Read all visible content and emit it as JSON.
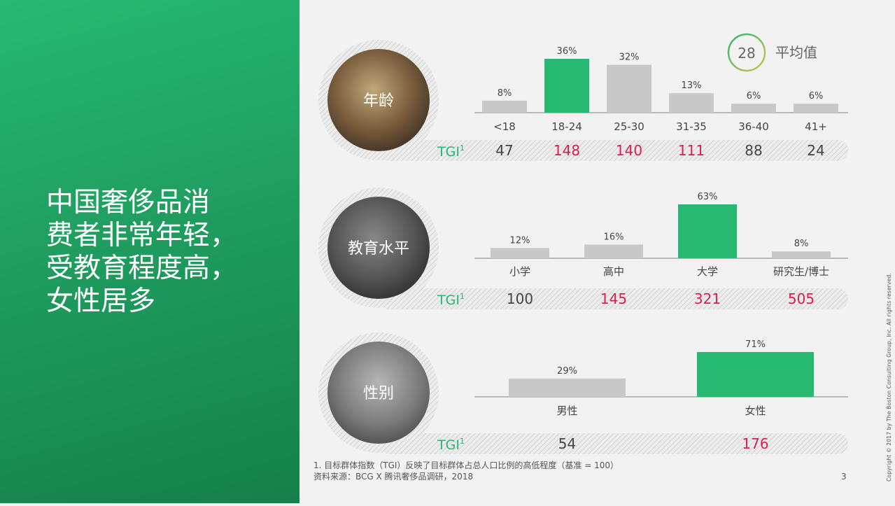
{
  "headline": [
    "中国奢侈品消",
    "费者非常年轻，",
    "受教育程度高，",
    "女性居多"
  ],
  "average": {
    "value": "28",
    "label": "平均值"
  },
  "tgi_label": "TGI",
  "tgi_sup": "1",
  "colors": {
    "highlight": "#27b872",
    "neutral": "#c8c8c8",
    "tgi_high": "#d81f4f",
    "tgi_low": "#444444",
    "green_panel": "#1f9e60"
  },
  "chart_data": [
    {
      "type": "bar",
      "label": "年龄",
      "icon": "young-couple-photo",
      "categories": [
        "<18",
        "18-24",
        "25-30",
        "31-35",
        "36-40",
        "41+"
      ],
      "values": [
        8,
        36,
        32,
        13,
        6,
        6
      ],
      "value_labels": [
        "8%",
        "36%",
        "32%",
        "13%",
        "6%",
        "6%"
      ],
      "highlight": [
        1
      ],
      "ylim": [
        0,
        36
      ],
      "tgi": [
        "47",
        "148",
        "140",
        "111",
        "88",
        "24"
      ],
      "tgi_highlight": [
        1,
        2,
        3
      ]
    },
    {
      "type": "bar",
      "label": "教育水平",
      "icon": "students-photo",
      "categories": [
        "小学",
        "高中",
        "大学",
        "研究生/博士"
      ],
      "values": [
        12,
        16,
        63,
        8
      ],
      "value_labels": [
        "12%",
        "16%",
        "63%",
        "8%"
      ],
      "highlight": [
        2
      ],
      "ylim": [
        0,
        63
      ],
      "tgi": [
        "100",
        "145",
        "321",
        "505"
      ],
      "tgi_highlight": [
        1,
        2,
        3
      ]
    },
    {
      "type": "bar",
      "label": "性别",
      "icon": "woman-with-phone-photo",
      "categories": [
        "男性",
        "女性"
      ],
      "values": [
        29,
        71
      ],
      "value_labels": [
        "29%",
        "71%"
      ],
      "highlight": [
        1
      ],
      "ylim": [
        0,
        71
      ],
      "tgi": [
        "54",
        "176"
      ],
      "tgi_highlight": [
        1
      ]
    }
  ],
  "footnote": [
    "1. 目标群体指数（TGI）反映了目标群体占总人口比例的高低程度（基准 = 100）",
    "资料来源：BCG X 腾讯奢侈品调研，2018"
  ],
  "page_number": "3",
  "copyright": "Copyright © 2017 by The Boston Consulting Group, Inc. All rights reserved."
}
